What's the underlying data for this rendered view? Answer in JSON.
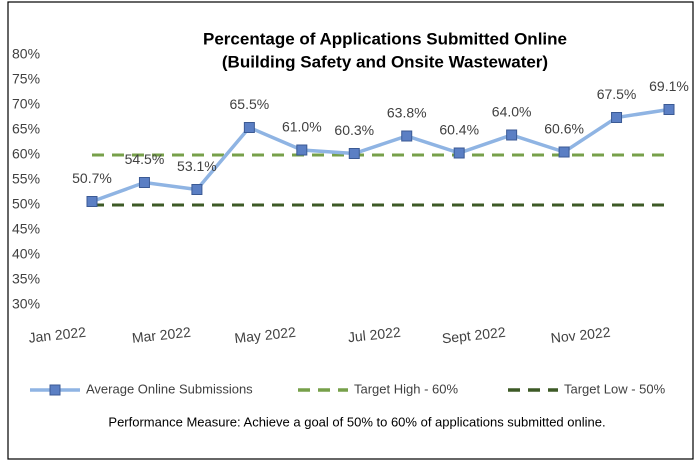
{
  "chart_data": {
    "type": "line",
    "title": "Percentage of Applications Submitted Online",
    "subtitle": "(Building Safety and Onsite Wastewater)",
    "categories": [
      "Jan 2022",
      null,
      "Mar 2022",
      null,
      "May 2022",
      null,
      "Jul 2022",
      null,
      "Sept 2022",
      null,
      "Nov 2022",
      null
    ],
    "series": [
      {
        "name": "Average  Online Submissions",
        "color": "#8fb4e3",
        "marker_color": "#5b7fc4",
        "marker": "square",
        "line_style": "solid",
        "values": [
          50.7,
          54.5,
          53.1,
          65.5,
          61.0,
          60.3,
          63.8,
          60.4,
          64.0,
          60.6,
          67.5,
          69.1
        ],
        "value_labels": [
          "50.7%",
          "54.5%",
          "53.1%",
          "65.5%",
          "61.0%",
          "60.3%",
          "63.8%",
          "60.4%",
          "64.0%",
          "60.6%",
          "67.5%",
          "69.1%"
        ]
      },
      {
        "name": "Target  High - 60%",
        "color": "#77a04a",
        "line_style": "dashed",
        "values": [
          60,
          60,
          60,
          60,
          60,
          60,
          60,
          60,
          60,
          60,
          60,
          60
        ]
      },
      {
        "name": "Target Low - 50%",
        "color": "#3d5a26",
        "line_style": "dashed",
        "values": [
          50,
          50,
          50,
          50,
          50,
          50,
          50,
          50,
          50,
          50,
          50,
          50
        ]
      }
    ],
    "ylim": [
      30,
      80
    ],
    "yticks": [
      {
        "value": 30,
        "label": "30%"
      },
      {
        "value": 35,
        "label": "35%"
      },
      {
        "value": 40,
        "label": "40%"
      },
      {
        "value": 45,
        "label": "45%"
      },
      {
        "value": 50,
        "label": "50%"
      },
      {
        "value": 55,
        "label": "55%"
      },
      {
        "value": 60,
        "label": "60%"
      },
      {
        "value": 65,
        "label": "65%"
      },
      {
        "value": 70,
        "label": "70%"
      },
      {
        "value": 75,
        "label": "75%"
      },
      {
        "value": 80,
        "label": "80%"
      }
    ],
    "grid": false,
    "legend": "bottom",
    "note": "Performance Measure: Achieve a goal of 50% to 60% of applications submitted online."
  }
}
